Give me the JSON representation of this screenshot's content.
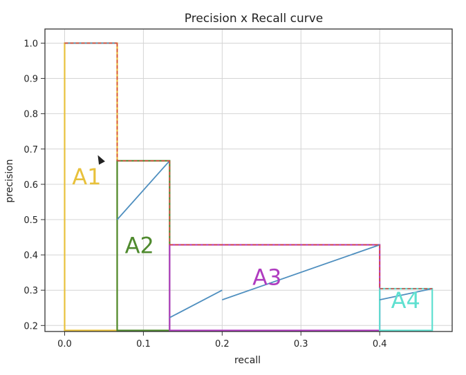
{
  "chart_data": {
    "type": "line",
    "title": "Precision x Recall curve",
    "xlabel": "recall",
    "ylabel": "precision",
    "xlim": [
      -0.025,
      0.492
    ],
    "ylim": [
      0.183,
      1.04
    ],
    "xticks": [
      0.0,
      0.1,
      0.2,
      0.3,
      0.4
    ],
    "xtick_labels": [
      "0.0",
      "0.1",
      "0.2",
      "0.3",
      "0.4"
    ],
    "yticks": [
      0.2,
      0.3,
      0.4,
      0.5,
      0.6,
      0.7,
      0.8,
      0.9,
      1.0
    ],
    "ytick_labels": [
      "0.2",
      "0.3",
      "0.4",
      "0.5",
      "0.6",
      "0.7",
      "0.8",
      "0.9",
      "1.0"
    ],
    "grid": true,
    "precision_recall_curve": {
      "color": "#4f8fbf",
      "segments": [
        [
          [
            0.0,
            1.0
          ],
          [
            0.0667,
            1.0
          ]
        ],
        [
          [
            0.0667,
            0.5
          ],
          [
            0.1333,
            0.6667
          ]
        ],
        [
          [
            0.1333,
            0.2222
          ],
          [
            0.2,
            0.3
          ]
        ],
        [
          [
            0.2,
            0.2727
          ],
          [
            0.4,
            0.4286
          ]
        ],
        [
          [
            0.4,
            0.2727
          ],
          [
            0.4667,
            0.3043
          ]
        ]
      ]
    },
    "interpolated_envelope": {
      "color": "#d9473d",
      "points": [
        [
          0.0,
          1.0
        ],
        [
          0.0667,
          1.0
        ],
        [
          0.0667,
          0.6667
        ],
        [
          0.1333,
          0.6667
        ],
        [
          0.1333,
          0.4286
        ],
        [
          0.4,
          0.4286
        ],
        [
          0.4,
          0.3043
        ],
        [
          0.4667,
          0.3043
        ]
      ]
    },
    "areas": [
      {
        "label": "A1",
        "x0": 0.0,
        "x1": 0.0667,
        "height": 1.0,
        "color": "#e8c13b",
        "label_at": [
          0.028,
          0.6
        ]
      },
      {
        "label": "A2",
        "x0": 0.0667,
        "x1": 0.1333,
        "height": 0.6667,
        "color": "#4f8a2e",
        "label_at": [
          0.095,
          0.405
        ]
      },
      {
        "label": "A3",
        "x0": 0.1333,
        "x1": 0.4,
        "height": 0.4286,
        "color": "#b03cc0",
        "label_at": [
          0.257,
          0.315
        ]
      },
      {
        "label": "A4",
        "x0": 0.4,
        "x1": 0.4667,
        "height": 0.3043,
        "color": "#5fe0d0",
        "label_at": [
          0.433,
          0.25
        ]
      }
    ],
    "baseline": 0.186
  }
}
